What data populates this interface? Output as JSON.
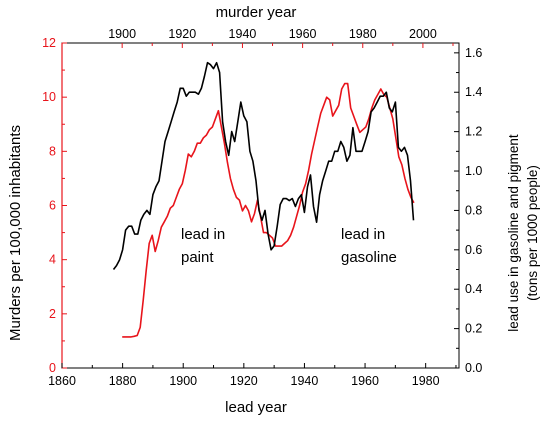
{
  "chart_data": {
    "type": "line",
    "title": "",
    "top_axis": {
      "label": "murder year",
      "range": [
        1880,
        2012
      ],
      "ticks": [
        1900,
        1920,
        1940,
        1960,
        1980,
        2000
      ]
    },
    "bottom_axis": {
      "label": "lead year",
      "range": [
        1860,
        1991
      ],
      "ticks": [
        1860,
        1880,
        1900,
        1920,
        1940,
        1960,
        1980
      ]
    },
    "left_axis": {
      "label": "Murders per 100,000 inhabitants",
      "range": [
        0,
        12
      ],
      "ticks": [
        0,
        2,
        4,
        6,
        8,
        10,
        12
      ],
      "color": "#e8141b"
    },
    "right_axis": {
      "label_line1": "lead use in gasoline and pigment",
      "label_line2": "(tons per 1000 people)",
      "range": [
        0,
        1.65
      ],
      "ticks": [
        "0.0",
        "0.2",
        "0.4",
        "0.6",
        "0.8",
        "1.0",
        "1.2",
        "1.4",
        "1.6"
      ],
      "color": "#000000"
    },
    "annotations": [
      {
        "key": "paint",
        "line1": "lead in",
        "line2": "paint"
      },
      {
        "key": "gasoline",
        "line1": "lead in",
        "line2": "gasoline"
      }
    ],
    "series": [
      {
        "key": "murder_rate",
        "axis": "left",
        "x_axis": "top",
        "color": "#e8141b",
        "x": [
          1900,
          1902,
          1903,
          1904,
          1905,
          1906,
          1907,
          1908,
          1909,
          1910,
          1911,
          1912,
          1913,
          1914,
          1915,
          1916,
          1917,
          1918,
          1919,
          1920,
          1921,
          1922,
          1923,
          1924,
          1925,
          1926,
          1927,
          1928,
          1929,
          1930,
          1931,
          1932,
          1933,
          1934,
          1935,
          1936,
          1937,
          1938,
          1939,
          1940,
          1941,
          1942,
          1943,
          1944,
          1945,
          1946,
          1947,
          1948,
          1949,
          1950,
          1951,
          1952,
          1953,
          1954,
          1955,
          1956,
          1957,
          1958,
          1959,
          1960,
          1961,
          1962,
          1963,
          1964,
          1965,
          1966,
          1967,
          1968,
          1969,
          1970,
          1971,
          1972,
          1973,
          1974,
          1975,
          1976,
          1977,
          1978,
          1979,
          1980,
          1981,
          1982,
          1983,
          1984,
          1985,
          1986,
          1987,
          1988,
          1989,
          1990,
          1991,
          1992,
          1993,
          1994,
          1995,
          1996,
          1997
        ],
        "y": [
          1.15,
          1.15,
          1.15,
          1.17,
          1.2,
          1.5,
          2.5,
          3.6,
          4.6,
          4.9,
          4.3,
          4.7,
          5.2,
          5.4,
          5.6,
          5.9,
          6.0,
          6.3,
          6.6,
          6.8,
          7.3,
          7.9,
          7.8,
          8.0,
          8.3,
          8.3,
          8.5,
          8.6,
          8.8,
          8.9,
          9.2,
          9.5,
          8.9,
          8.3,
          7.6,
          7.0,
          6.6,
          6.3,
          6.2,
          5.8,
          6.0,
          5.8,
          5.4,
          5.7,
          6.2,
          5.6,
          5.0,
          5.0,
          4.9,
          4.8,
          4.5,
          4.5,
          4.5,
          4.6,
          4.7,
          4.9,
          5.2,
          5.6,
          6.0,
          6.5,
          6.8,
          7.3,
          7.9,
          8.4,
          8.9,
          9.4,
          9.7,
          10.0,
          9.9,
          9.3,
          9.5,
          9.7,
          10.3,
          10.5,
          10.5,
          9.6,
          9.3,
          9.0,
          8.7,
          8.8,
          8.9,
          9.2,
          9.6,
          9.9,
          10.1,
          10.3,
          10.1,
          10.0,
          9.6,
          9.2,
          8.5,
          7.8,
          7.5,
          7.0,
          6.6,
          6.3,
          6.1
        ]
      },
      {
        "key": "lead_use",
        "axis": "right",
        "x_axis": "bottom",
        "color": "#000000",
        "x": [
          1877,
          1878,
          1879,
          1880,
          1881,
          1882,
          1883,
          1884,
          1885,
          1886,
          1887,
          1888,
          1889,
          1890,
          1891,
          1892,
          1893,
          1894,
          1895,
          1896,
          1897,
          1898,
          1899,
          1900,
          1901,
          1902,
          1903,
          1904,
          1905,
          1906,
          1907,
          1908,
          1909,
          1910,
          1911,
          1912,
          1913,
          1914,
          1915,
          1916,
          1917,
          1918,
          1919,
          1920,
          1921,
          1922,
          1923,
          1924,
          1925,
          1926,
          1927,
          1928,
          1929,
          1930,
          1931,
          1932,
          1933,
          1934,
          1935,
          1936,
          1937,
          1938,
          1939,
          1940,
          1941,
          1942,
          1943,
          1944,
          1945,
          1946,
          1947,
          1948,
          1949,
          1950,
          1951,
          1952,
          1953,
          1954,
          1955,
          1956,
          1957,
          1958,
          1959,
          1960,
          1961,
          1962,
          1963,
          1964,
          1965,
          1966,
          1967,
          1968,
          1969,
          1970,
          1971,
          1972,
          1973,
          1974,
          1975,
          1976
        ],
        "y": [
          0.5,
          0.52,
          0.55,
          0.6,
          0.7,
          0.72,
          0.72,
          0.68,
          0.68,
          0.75,
          0.78,
          0.8,
          0.78,
          0.88,
          0.92,
          0.95,
          1.05,
          1.15,
          1.2,
          1.25,
          1.3,
          1.35,
          1.42,
          1.42,
          1.38,
          1.4,
          1.4,
          1.4,
          1.39,
          1.42,
          1.48,
          1.55,
          1.54,
          1.52,
          1.55,
          1.5,
          1.25,
          1.15,
          1.08,
          1.2,
          1.15,
          1.25,
          1.35,
          1.28,
          1.25,
          1.1,
          1.05,
          0.95,
          0.8,
          0.75,
          0.8,
          0.68,
          0.6,
          0.62,
          0.72,
          0.83,
          0.86,
          0.86,
          0.85,
          0.86,
          0.82,
          0.86,
          0.88,
          0.79,
          0.92,
          0.98,
          0.82,
          0.74,
          0.88,
          0.95,
          1.0,
          1.05,
          1.05,
          1.1,
          1.1,
          1.15,
          1.12,
          1.05,
          1.08,
          1.22,
          1.1,
          1.1,
          1.1,
          1.15,
          1.2,
          1.3,
          1.32,
          1.35,
          1.38,
          1.38,
          1.4,
          1.32,
          1.3,
          1.35,
          1.12,
          1.1,
          1.12,
          1.08,
          0.95,
          0.75
        ]
      }
    ]
  }
}
